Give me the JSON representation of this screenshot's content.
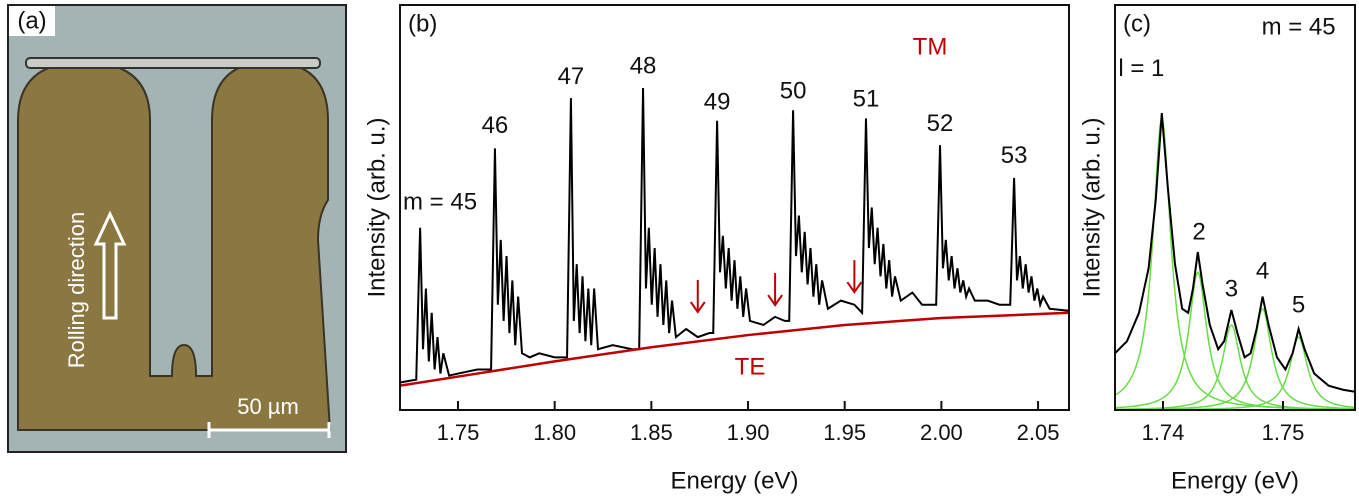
{
  "panel_a": {
    "panel_label": "(a)",
    "direction_label": "Rolling direction",
    "scale_label": "50 µm"
  },
  "chart_data": [
    {
      "type": "line",
      "panel_label": "(b)",
      "xlabel": "Energy (eV)",
      "ylabel": "Intensity (arb. u.)",
      "xlim": [
        1.72,
        2.066
      ],
      "ylim": [
        0,
        1
      ],
      "xticks": [
        1.75,
        {
          "value": 1.8,
          "label": "1.80"
        },
        1.85,
        {
          "value": 1.9,
          "label": "1.90"
        },
        1.95,
        {
          "value": 2.0,
          "label": "2.00"
        },
        2.05
      ],
      "series_label_color": "#c00000",
      "series": [
        {
          "name": "TM",
          "color": "#000000",
          "x": [
            1.72,
            1.7284,
            1.7304,
            1.7319,
            1.7334,
            1.7349,
            1.7364,
            1.7379,
            1.7394,
            1.7409,
            1.7424,
            1.7454,
            1.75,
            1.76,
            1.7671,
            1.7691,
            1.7706,
            1.7721,
            1.7736,
            1.7751,
            1.7766,
            1.7781,
            1.7796,
            1.7811,
            1.7831,
            1.7871,
            1.792,
            1.8,
            1.8064,
            1.8084,
            1.8099,
            1.8114,
            1.8129,
            1.8144,
            1.8159,
            1.8174,
            1.8189,
            1.8204,
            1.8224,
            1.83,
            1.84,
            1.8437,
            1.8457,
            1.8472,
            1.8487,
            1.8502,
            1.8517,
            1.8532,
            1.8547,
            1.8562,
            1.8577,
            1.8592,
            1.8607,
            1.8627,
            1.868,
            1.874,
            1.88,
            1.882,
            1.884,
            1.8855,
            1.887,
            1.8885,
            1.89,
            1.8915,
            1.893,
            1.8945,
            1.896,
            1.8975,
            1.899,
            1.901,
            1.908,
            1.914,
            1.919,
            1.9213,
            1.9233,
            1.9248,
            1.9263,
            1.9278,
            1.9293,
            1.9308,
            1.9323,
            1.9338,
            1.9353,
            1.9368,
            1.9383,
            1.9413,
            1.948,
            1.955,
            1.959,
            1.961,
            1.9625,
            1.964,
            1.9655,
            1.967,
            1.9685,
            1.97,
            1.9715,
            1.973,
            1.9745,
            1.976,
            1.979,
            1.985,
            1.99,
            1.9973,
            1.9993,
            2.0008,
            2.0023,
            2.0038,
            2.0053,
            2.0068,
            2.0083,
            2.0098,
            2.0113,
            2.0128,
            2.0143,
            2.0173,
            2.024,
            2.03,
            2.0356,
            2.0376,
            2.0391,
            2.0406,
            2.0421,
            2.0436,
            2.0451,
            2.0466,
            2.0481,
            2.0496,
            2.0511,
            2.0526,
            2.056,
            2.066
          ],
          "values": [
            0.068,
            0.075,
            0.45,
            0.15,
            0.3,
            0.12,
            0.24,
            0.1,
            0.18,
            0.09,
            0.14,
            0.085,
            0.09,
            0.1,
            0.1,
            0.646,
            0.26,
            0.42,
            0.22,
            0.38,
            0.19,
            0.32,
            0.16,
            0.28,
            0.14,
            0.13,
            0.14,
            0.13,
            0.13,
            0.77,
            0.22,
            0.36,
            0.19,
            0.33,
            0.17,
            0.3,
            0.16,
            0.3,
            0.15,
            0.16,
            0.15,
            0.15,
            0.795,
            0.3,
            0.45,
            0.26,
            0.4,
            0.23,
            0.36,
            0.21,
            0.32,
            0.19,
            0.27,
            0.18,
            0.2,
            0.18,
            0.19,
            0.19,
            0.714,
            0.34,
            0.43,
            0.3,
            0.4,
            0.27,
            0.37,
            0.25,
            0.33,
            0.23,
            0.3,
            0.22,
            0.21,
            0.23,
            0.22,
            0.22,
            0.74,
            0.38,
            0.48,
            0.34,
            0.44,
            0.31,
            0.4,
            0.28,
            0.36,
            0.26,
            0.32,
            0.25,
            0.27,
            0.26,
            0.24,
            0.72,
            0.4,
            0.5,
            0.36,
            0.45,
            0.33,
            0.41,
            0.3,
            0.37,
            0.28,
            0.33,
            0.27,
            0.29,
            0.26,
            0.26,
            0.654,
            0.35,
            0.42,
            0.32,
            0.38,
            0.3,
            0.35,
            0.29,
            0.32,
            0.28,
            0.3,
            0.27,
            0.27,
            0.26,
            0.26,
            0.573,
            0.32,
            0.38,
            0.3,
            0.36,
            0.29,
            0.33,
            0.27,
            0.3,
            0.26,
            0.28,
            0.25,
            0.245
          ]
        },
        {
          "name": "TE",
          "color": "#c00000",
          "x": [
            1.72,
            1.76,
            1.8,
            1.85,
            1.9,
            1.95,
            2.0,
            2.066
          ],
          "values": [
            0.06,
            0.09,
            0.12,
            0.155,
            0.185,
            0.21,
            0.227,
            0.24
          ]
        }
      ],
      "arrows": {
        "color": "#c00000",
        "x": [
          1.874,
          1.914,
          1.955
        ],
        "y": [
          0.242,
          0.259,
          0.291
        ]
      },
      "annotations": [
        {
          "text": "m = 45",
          "x": 1.7407,
          "y": 0.511
        },
        {
          "text": "46",
          "x": 1.7691,
          "y": 0.7
        },
        {
          "text": "47",
          "x": 1.8084,
          "y": 0.82
        },
        {
          "text": "48",
          "x": 1.8457,
          "y": 0.847
        },
        {
          "text": "49",
          "x": 1.884,
          "y": 0.758
        },
        {
          "text": "50",
          "x": 1.9233,
          "y": 0.785
        },
        {
          "text": "51",
          "x": 1.961,
          "y": 0.765
        },
        {
          "text": "52",
          "x": 1.9993,
          "y": 0.704
        },
        {
          "text": "53",
          "x": 2.0376,
          "y": 0.625
        }
      ]
    },
    {
      "type": "line",
      "panel_label": "(c)",
      "xlabel": "Energy (eV)",
      "ylabel": "Intensity (arb. u.)",
      "xlim": [
        1.736,
        1.756
      ],
      "ylim": [
        0,
        1
      ],
      "xticks": [
        1.74,
        1.75
      ],
      "series": [
        {
          "color": "#000000",
          "x": [
            1.736,
            1.737,
            1.738,
            1.7388,
            1.7394,
            1.7399,
            1.7404,
            1.741,
            1.7416,
            1.7421,
            1.7425,
            1.7429,
            1.7433,
            1.7439,
            1.7446,
            1.7451,
            1.7457,
            1.7462,
            1.7468,
            1.7473,
            1.7478,
            1.7483,
            1.7488,
            1.7495,
            1.7502,
            1.7508,
            1.7513,
            1.7518,
            1.7526,
            1.7538,
            1.755,
            1.756
          ],
          "values": [
            0.14,
            0.17,
            0.24,
            0.35,
            0.52,
            0.733,
            0.55,
            0.36,
            0.25,
            0.24,
            0.3,
            0.39,
            0.31,
            0.21,
            0.15,
            0.17,
            0.247,
            0.19,
            0.13,
            0.14,
            0.2,
            0.28,
            0.21,
            0.13,
            0.1,
            0.14,
            0.2,
            0.15,
            0.09,
            0.06,
            0.05,
            0.045
          ]
        }
      ],
      "fit_color": "#66dd44",
      "fits": [
        {
          "center": 1.7399,
          "amplitude": 0.72,
          "hwhm": 0.0009
        },
        {
          "center": 1.7429,
          "amplitude": 0.34,
          "hwhm": 0.0009
        },
        {
          "center": 1.7457,
          "amplitude": 0.21,
          "hwhm": 0.0009
        },
        {
          "center": 1.7483,
          "amplitude": 0.25,
          "hwhm": 0.0009
        },
        {
          "center": 1.7513,
          "amplitude": 0.18,
          "hwhm": 0.0009
        }
      ],
      "annotations": [
        {
          "text": "m = 45",
          "x": 1.7513,
          "y": 0.943
        },
        {
          "text": "l = 1",
          "x": 1.7382,
          "y": 0.84
        },
        {
          "text": "2",
          "x": 1.743,
          "y": 0.437
        },
        {
          "text": "3",
          "x": 1.7457,
          "y": 0.296
        },
        {
          "text": "4",
          "x": 1.7483,
          "y": 0.34
        },
        {
          "text": "5",
          "x": 1.7513,
          "y": 0.257
        }
      ]
    }
  ]
}
